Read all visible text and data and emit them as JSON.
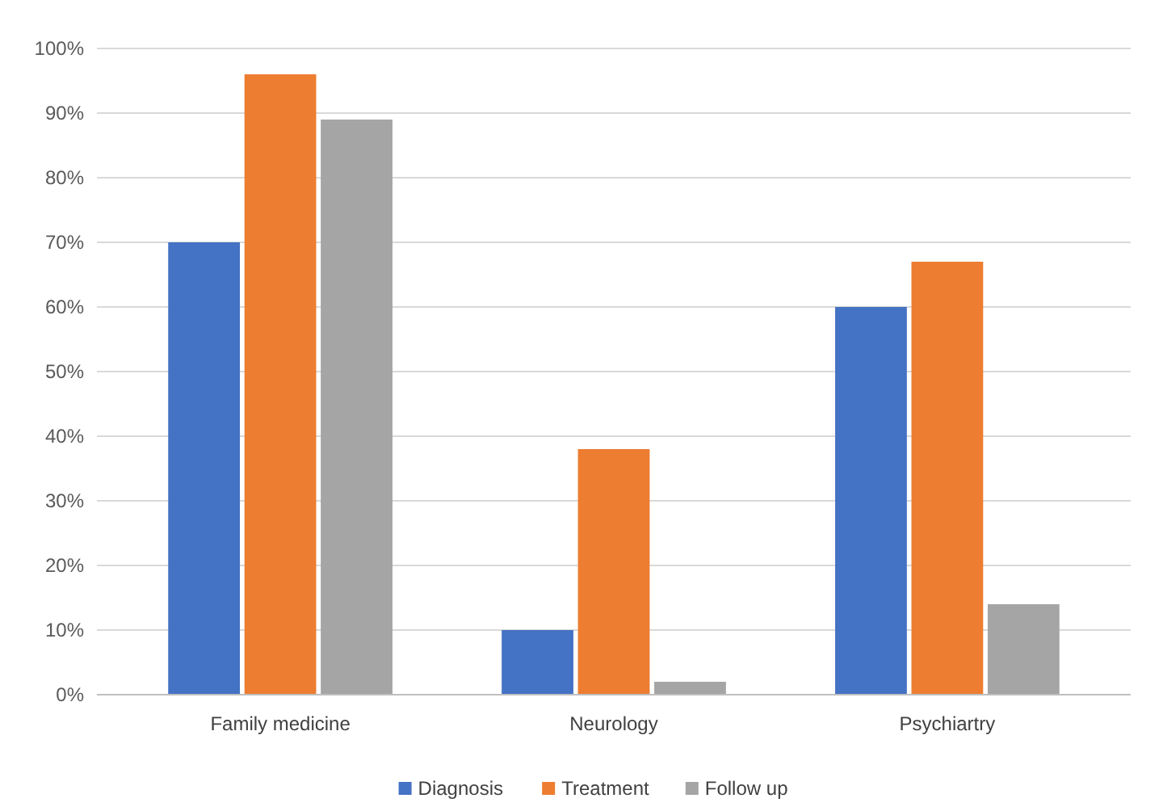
{
  "chart_data": {
    "type": "bar",
    "categories": [
      "Family medicine",
      "Neurology",
      "Psychiartry"
    ],
    "series": [
      {
        "name": "Diagnosis",
        "color": "#4472c4",
        "values": [
          70,
          10,
          60
        ]
      },
      {
        "name": "Treatment",
        "color": "#ed7d31",
        "values": [
          96,
          38,
          67
        ]
      },
      {
        "name": "Follow up",
        "color": "#a5a5a5",
        "values": [
          89,
          2,
          14
        ]
      }
    ],
    "ylim": [
      0,
      100
    ],
    "yticks": [
      {
        "value": 0,
        "label": "0%"
      },
      {
        "value": 10,
        "label": "10%"
      },
      {
        "value": 20,
        "label": "20%"
      },
      {
        "value": 30,
        "label": "30%"
      },
      {
        "value": 40,
        "label": "40%"
      },
      {
        "value": 50,
        "label": "50%"
      },
      {
        "value": 60,
        "label": "60%"
      },
      {
        "value": 70,
        "label": "70%"
      },
      {
        "value": 80,
        "label": "80%"
      },
      {
        "value": 90,
        "label": "90%"
      },
      {
        "value": 100,
        "label": "100%"
      }
    ],
    "grid": true,
    "legend": "bottom"
  }
}
